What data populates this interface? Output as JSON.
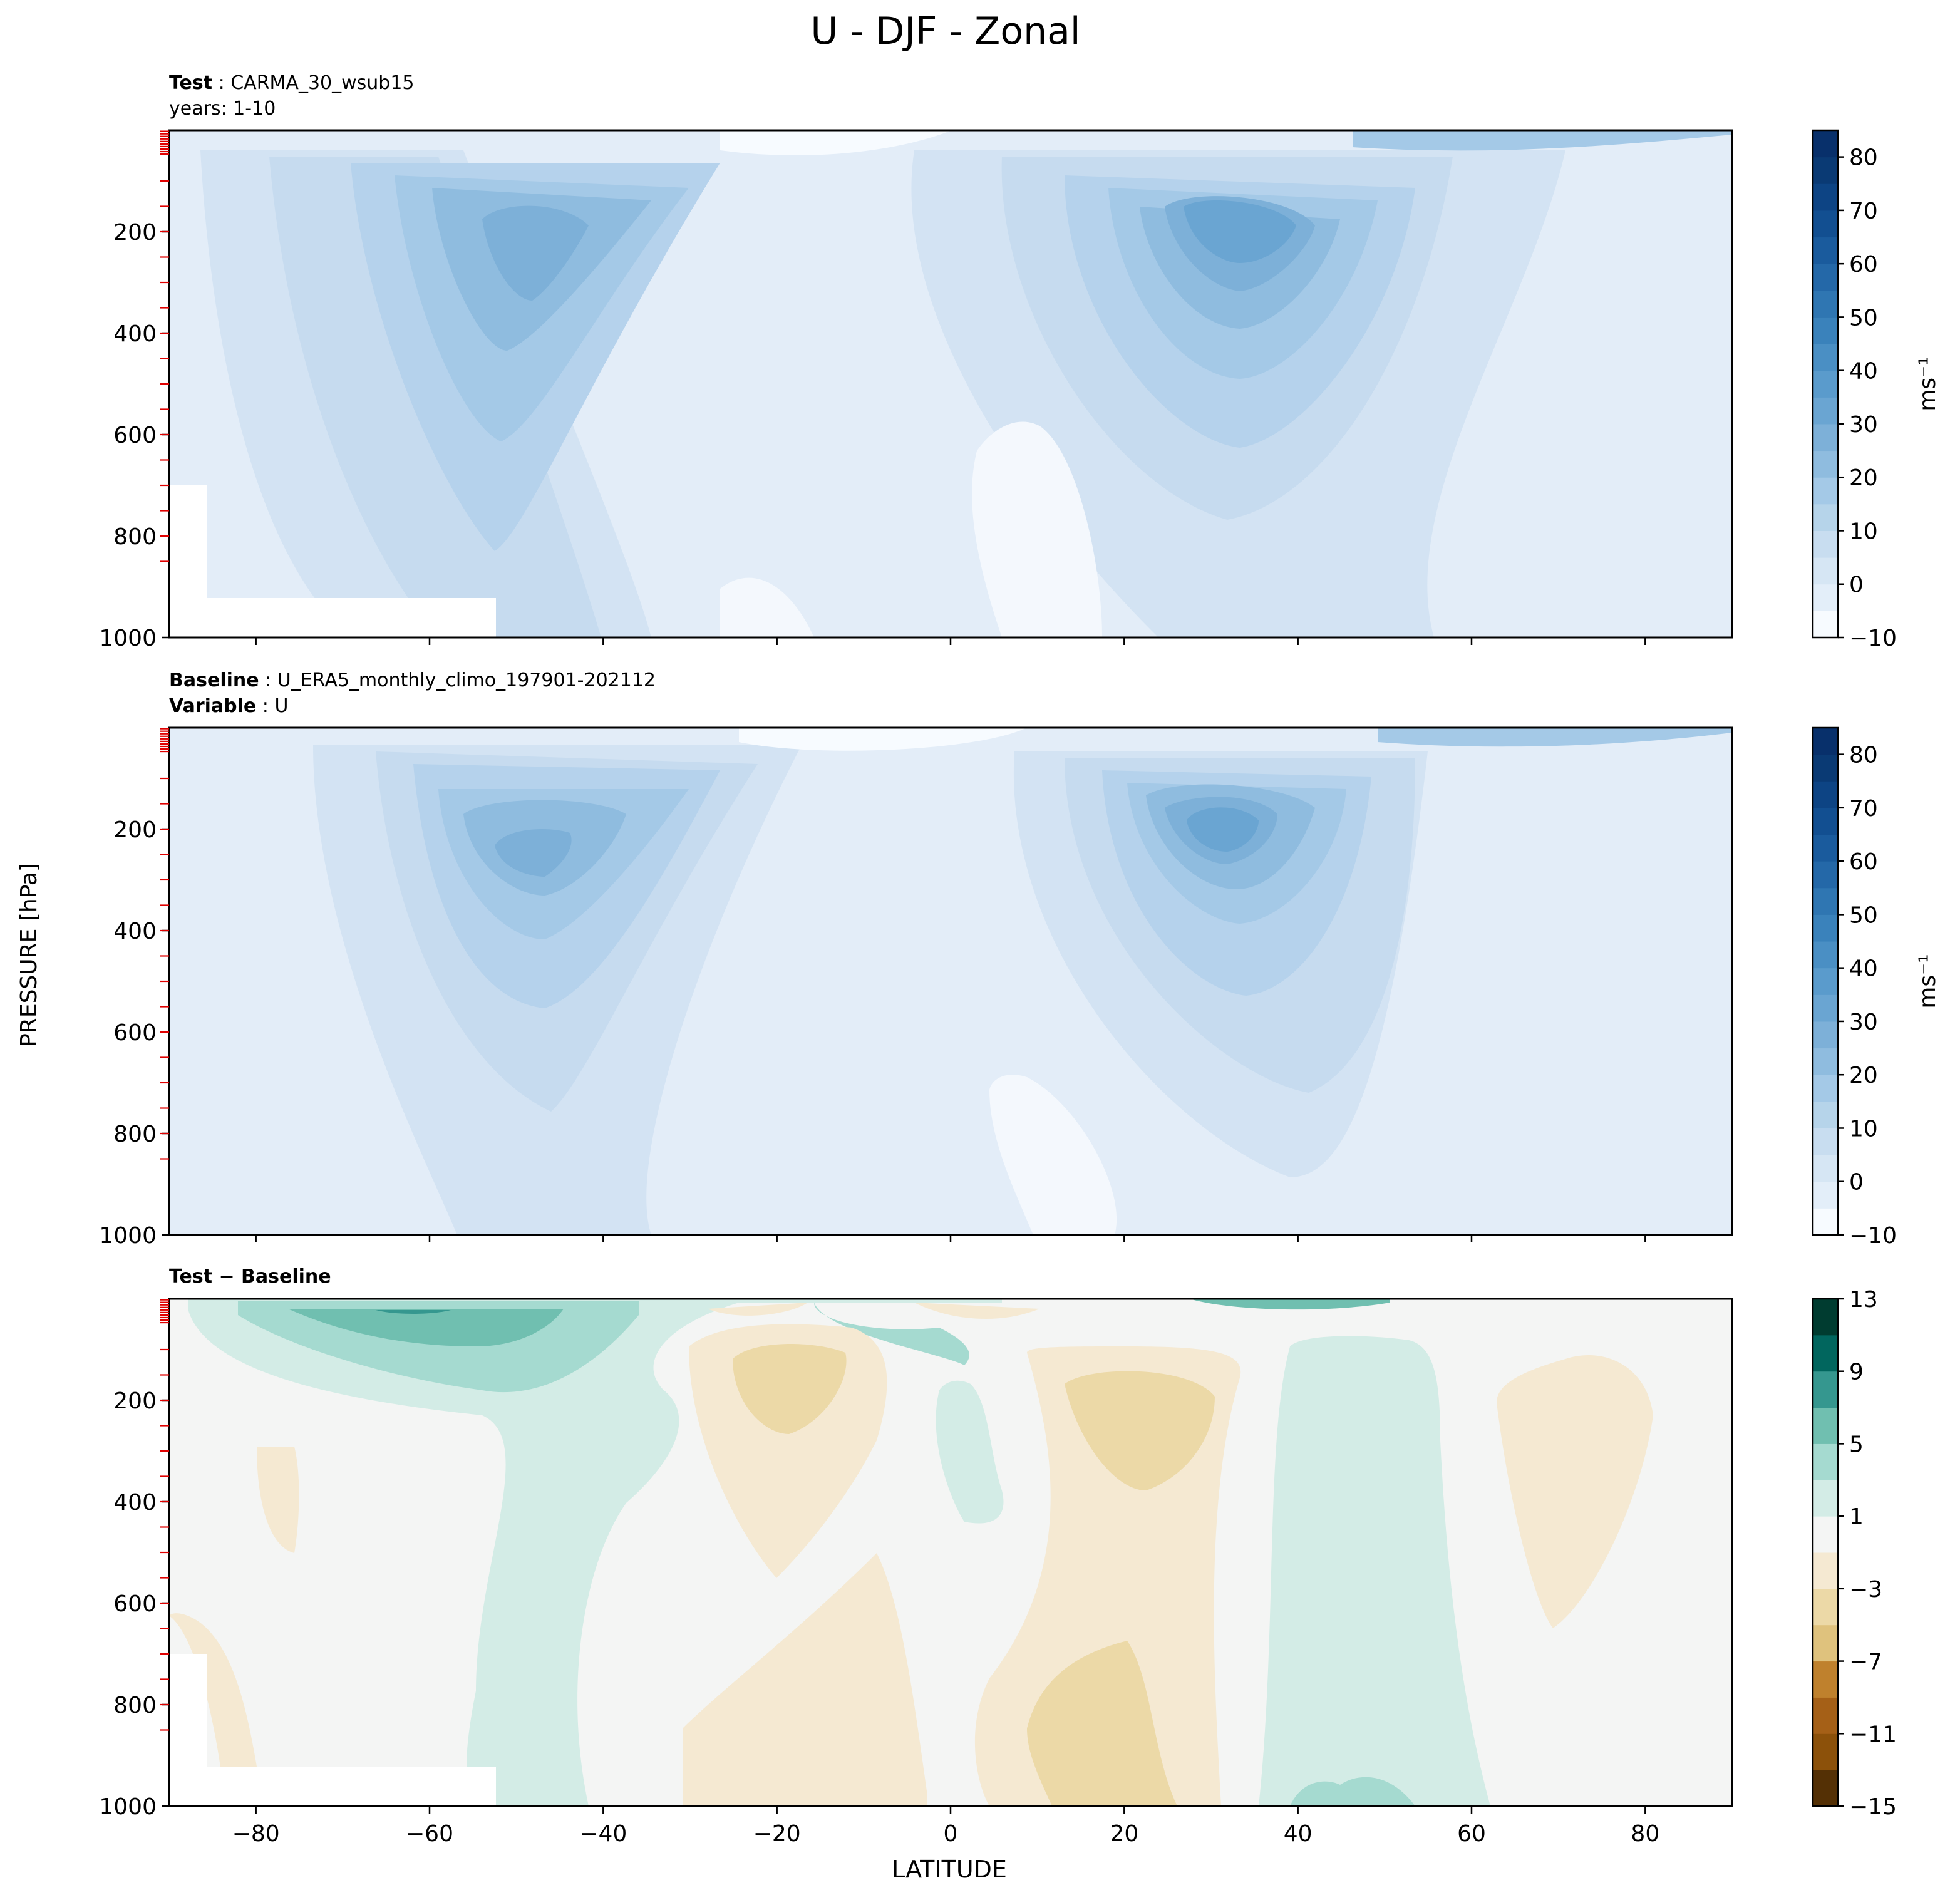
{
  "figure": {
    "title": "U - DJF - Zonal",
    "xlabel": "LATITUDE",
    "ylabel": "PRESSURE [hPa]"
  },
  "panels": [
    {
      "role": "test",
      "header_line1_bold": "Test",
      "header_line1_text": ": CARMA_30_wsub15",
      "header_line2_bold": "",
      "header_line2_text": "years: 1-10",
      "colorbar_label": "ms⁻¹"
    },
    {
      "role": "baseline",
      "header_line1_bold": "Baseline",
      "header_line1_text": ": U_ERA5_monthly_climo_197901-202112",
      "header_line2_bold": "Variable",
      "header_line2_text": ": U",
      "colorbar_label": "ms⁻¹"
    },
    {
      "role": "difference",
      "header_line1_bold": "Test − Baseline",
      "header_line1_text": "",
      "header_line2_bold": "",
      "header_line2_text": "",
      "colorbar_label": ""
    }
  ],
  "chart_data": [
    {
      "type": "contourf",
      "panel": "Test: CARMA_30_wsub15, years: 1-10",
      "x": "latitude",
      "xlim": [
        -90,
        90
      ],
      "xticks": [
        -80,
        -60,
        -40,
        -20,
        0,
        20,
        40,
        60,
        80
      ],
      "y": "pressure (hPa)",
      "ylim": [
        1000,
        0
      ],
      "inverted_y": true,
      "yticks": [
        200,
        400,
        600,
        800,
        1000
      ],
      "levels": [
        -10,
        -5,
        0,
        5,
        10,
        15,
        20,
        25,
        30,
        35,
        40,
        45,
        50,
        55,
        60,
        65,
        70,
        75,
        80,
        85
      ],
      "colorbar_ticks": [
        -10,
        0,
        10,
        20,
        30,
        40,
        50,
        60,
        70,
        80
      ],
      "colorbar_label": "ms⁻¹",
      "colormap": "Blues",
      "features": [
        {
          "name": "southern jet",
          "lat": -47,
          "p": 220,
          "max": 38
        },
        {
          "name": "northern jet",
          "lat": 33,
          "p": 200,
          "max": 46
        },
        {
          "name": "tropics",
          "lat": 0,
          "p": 500,
          "min": 0
        }
      ]
    },
    {
      "type": "contourf",
      "panel": "Baseline: U_ERA5_monthly_climo_197901-202112, Variable: U",
      "x": "latitude",
      "xlim": [
        -90,
        90
      ],
      "xticks": [
        -80,
        -60,
        -40,
        -20,
        0,
        20,
        40,
        60,
        80
      ],
      "y": "pressure (hPa)",
      "ylim": [
        1000,
        0
      ],
      "inverted_y": true,
      "yticks": [
        200,
        400,
        600,
        800,
        1000
      ],
      "levels": [
        -10,
        -5,
        0,
        5,
        10,
        15,
        20,
        25,
        30,
        35,
        40,
        45,
        50,
        55,
        60,
        65,
        70,
        75,
        80,
        85
      ],
      "colorbar_ticks": [
        -10,
        0,
        10,
        20,
        30,
        40,
        50,
        60,
        70,
        80
      ],
      "colorbar_label": "ms⁻¹",
      "colormap": "Blues",
      "features": [
        {
          "name": "southern jet",
          "lat": -46,
          "p": 250,
          "max": 36
        },
        {
          "name": "northern jet",
          "lat": 30,
          "p": 200,
          "max": 44
        }
      ]
    },
    {
      "type": "contourf",
      "panel": "Test − Baseline",
      "x": "latitude",
      "xlim": [
        -90,
        90
      ],
      "xticks": [
        -80,
        -60,
        -40,
        -20,
        0,
        20,
        40,
        60,
        80
      ],
      "y": "pressure (hPa)",
      "ylim": [
        1000,
        0
      ],
      "inverted_y": true,
      "yticks": [
        200,
        400,
        600,
        800,
        1000
      ],
      "levels": [
        -15,
        -13,
        -11,
        -9,
        -7,
        -5,
        -3,
        -1,
        1,
        3,
        5,
        7,
        9,
        11,
        13
      ],
      "colorbar_ticks": [
        -15,
        -11,
        -7,
        -3,
        1,
        5,
        9,
        13
      ],
      "colormap": "BrBG",
      "features": [
        {
          "name": "positive upper-level SH",
          "lat": -62,
          "p": 50,
          "value": 9
        },
        {
          "name": "negative 20S",
          "lat": -20,
          "p": 200,
          "value": -3
        },
        {
          "name": "negative 25N",
          "lat": 25,
          "p": 250,
          "value": -3
        },
        {
          "name": "positive 45N column",
          "lat": 45,
          "p": 600,
          "value": 2
        }
      ]
    }
  ]
}
